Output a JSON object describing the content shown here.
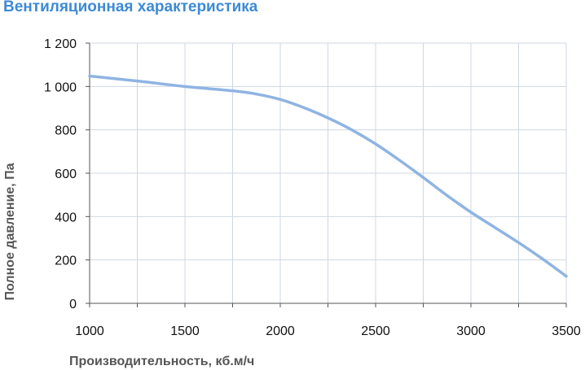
{
  "chart_data": {
    "type": "line",
    "title": "Вентиляционная характеристика",
    "xlabel": "Производительность, кб.м/ч",
    "ylabel": "Полное  давление, Па",
    "xlim": [
      1000,
      3500
    ],
    "ylim": [
      0,
      1200
    ],
    "x_ticks": [
      1000,
      1500,
      2000,
      2500,
      3000,
      3500
    ],
    "x_tick_labels": [
      "1000",
      "1500",
      "2000",
      "2500",
      "3000",
      "3500"
    ],
    "y_ticks": [
      0,
      200,
      400,
      600,
      800,
      1000,
      1200
    ],
    "y_tick_labels": [
      "0",
      "200",
      "400",
      "600",
      "800",
      "1 000",
      "1 200"
    ],
    "grid": true,
    "series": [
      {
        "color": "#8fb4e3",
        "x": [
          1000,
          1250,
          1500,
          1750,
          1875,
          2000,
          2125,
          2250,
          2375,
          2500,
          2625,
          2750,
          2875,
          3000,
          3125,
          3250,
          3375,
          3500
        ],
        "y": [
          1048,
          1025,
          1000,
          980,
          965,
          940,
          902,
          855,
          800,
          735,
          660,
          580,
          497,
          420,
          350,
          280,
          205,
          125
        ]
      }
    ]
  }
}
